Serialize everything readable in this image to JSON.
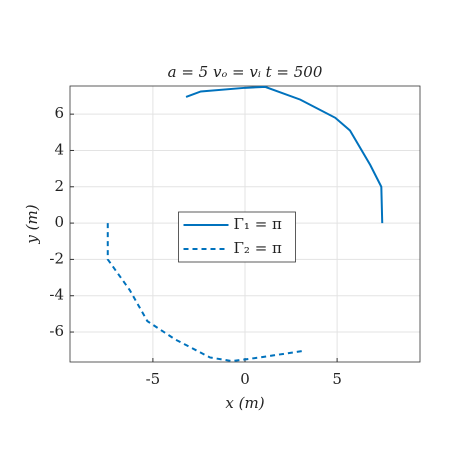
{
  "chart_data": {
    "type": "line",
    "title": "a = 5    vₒ = vᵢ    t = 500",
    "xlabel": "x (m)",
    "ylabel": "y (m)",
    "xlim": [
      -9.5,
      9.5
    ],
    "ylim": [
      -7.65,
      7.55
    ],
    "xticks": [
      -5,
      0,
      5
    ],
    "yticks": [
      -6,
      -4,
      -2,
      0,
      2,
      4,
      6
    ],
    "grid": true,
    "legend": "center",
    "series": [
      {
        "name": "Γ₁ = π",
        "color": "#0072bd",
        "dash": "solid",
        "x": [
          7.45,
          7.4,
          6.8,
          5.7,
          4.9,
          3.0,
          1.1,
          0,
          -2.4,
          -3.2
        ],
        "values": [
          0,
          2.0,
          3.2,
          5.1,
          5.8,
          6.8,
          7.5,
          7.45,
          7.25,
          6.95
        ]
      },
      {
        "name": "Γ₂ = π",
        "color": "#0072bd",
        "dash": "dashed",
        "x": [
          -7.45,
          -7.45,
          -6.25,
          -5.3,
          -3.8,
          -1.9,
          -0.7,
          0.8,
          3.1
        ],
        "values": [
          0,
          -2.0,
          -3.7,
          -5.4,
          -6.4,
          -7.4,
          -7.6,
          -7.4,
          -7.05
        ]
      }
    ]
  }
}
